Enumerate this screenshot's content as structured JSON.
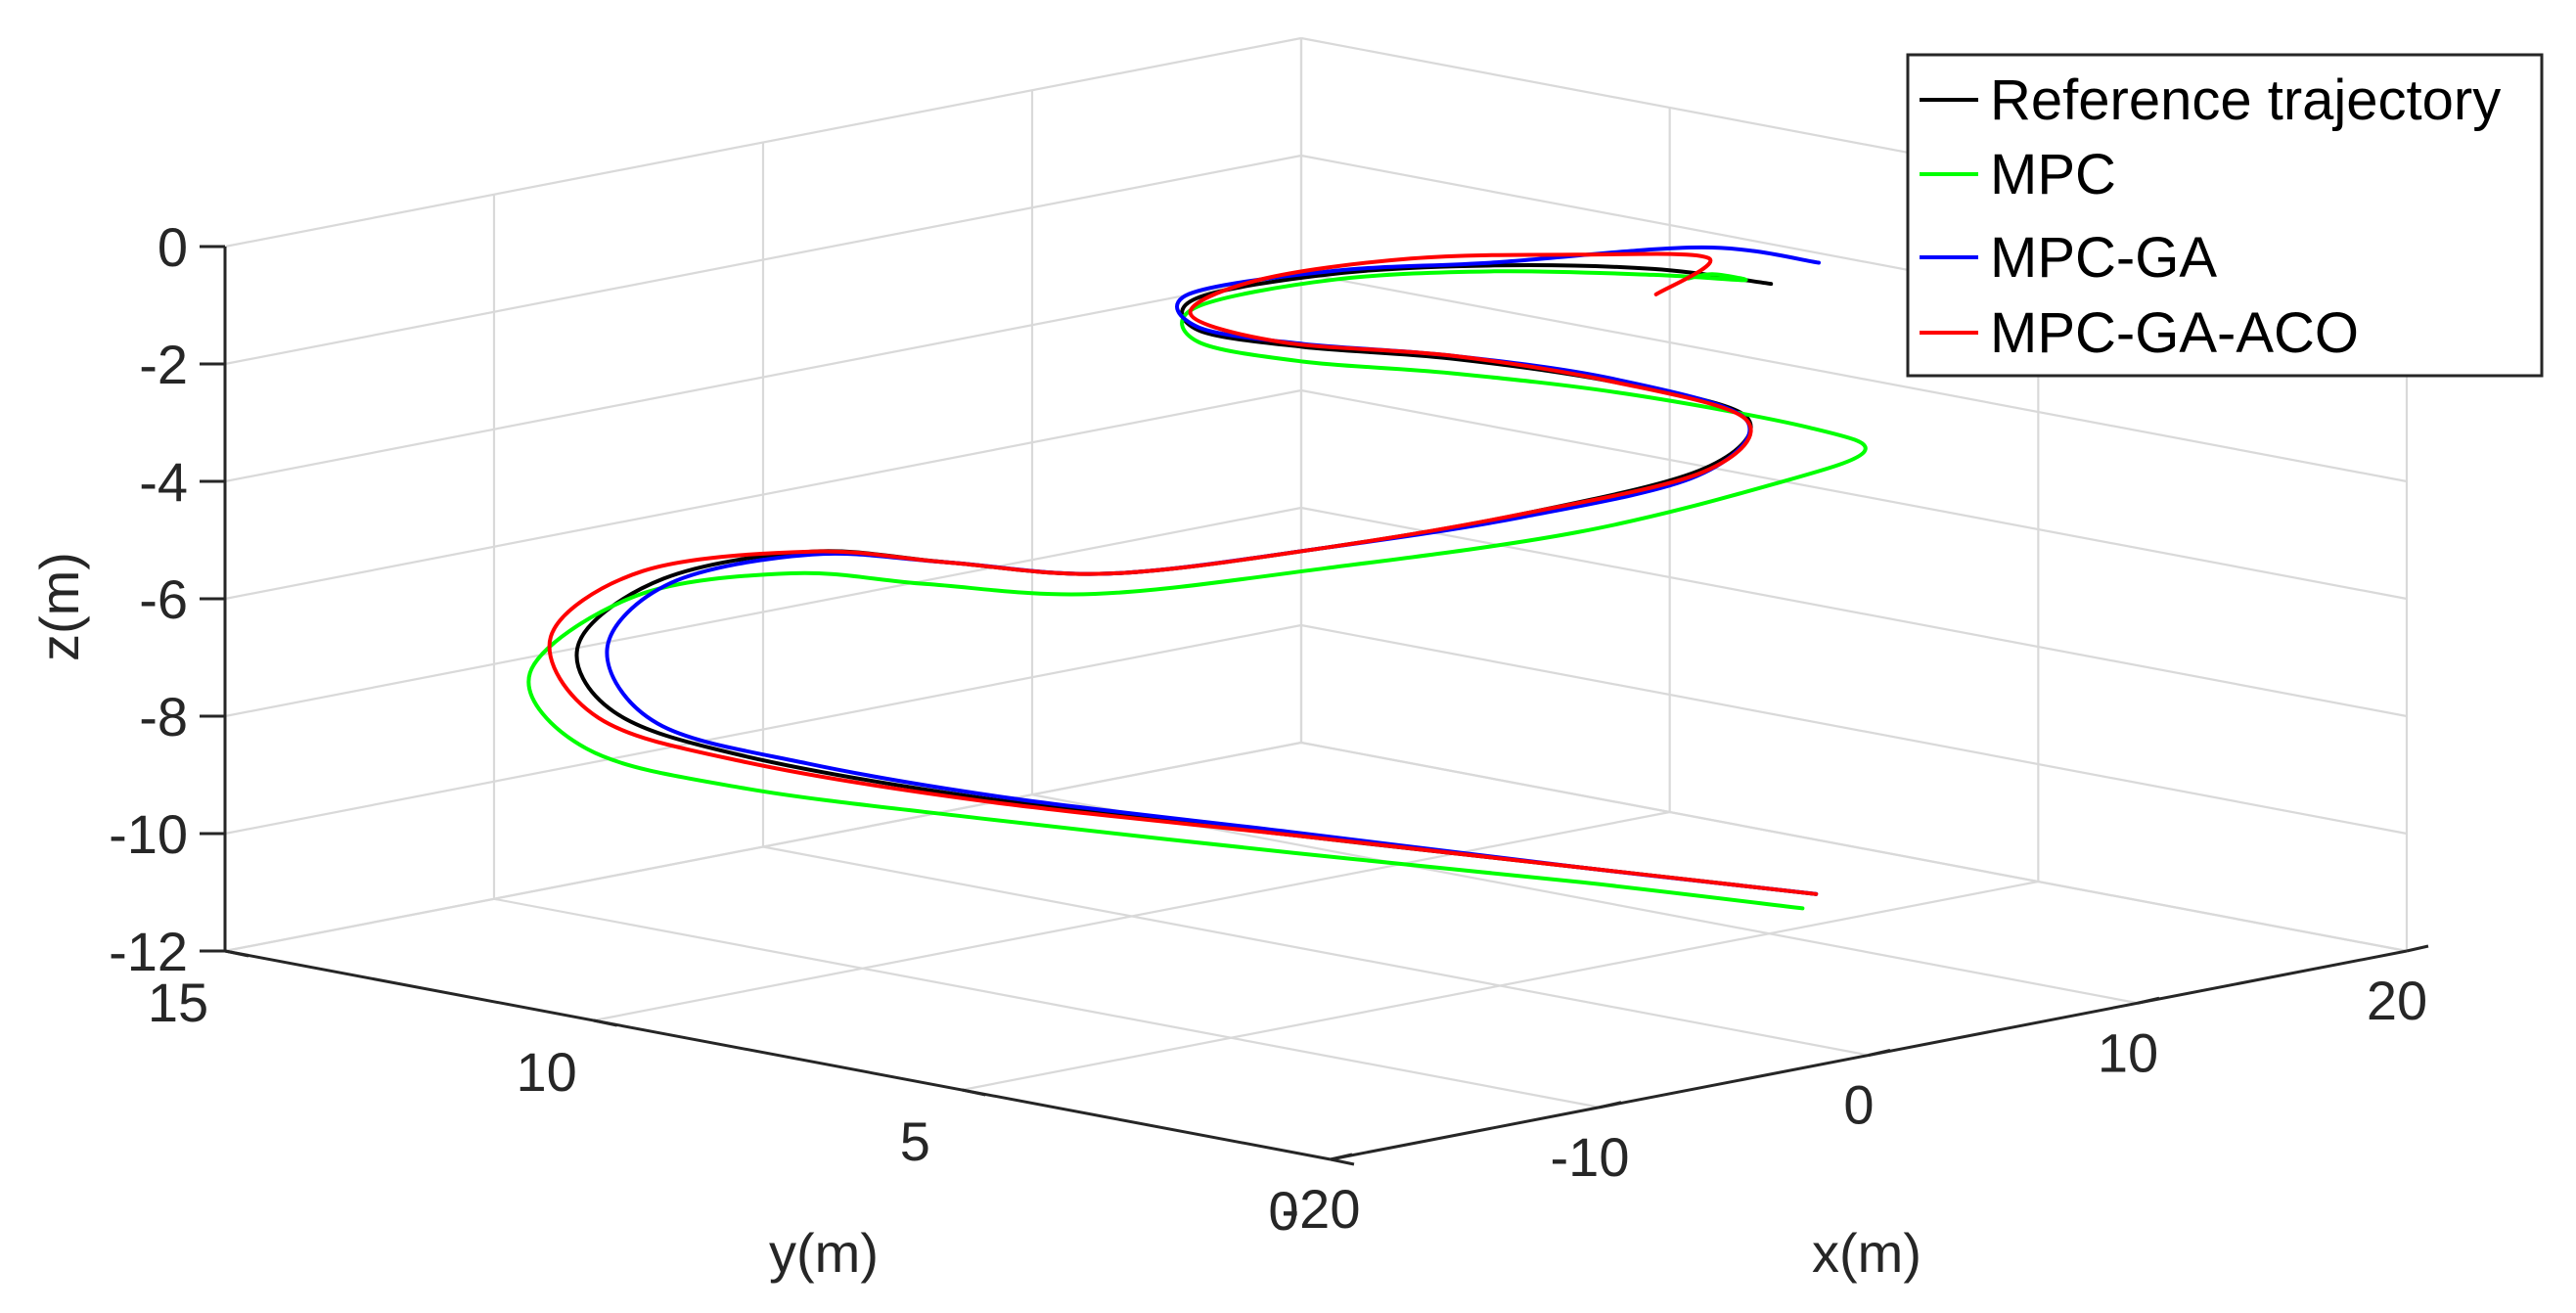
{
  "chart_data": {
    "type": "line",
    "title": "",
    "xlabel": "x(m)",
    "ylabel": "y(m)",
    "zlabel": "z(m)",
    "xlim": [
      -20,
      20
    ],
    "ylim": [
      0,
      15
    ],
    "zlim": [
      -12,
      0
    ],
    "xticks": [
      "-20",
      "-10",
      "0",
      "10",
      "20"
    ],
    "yticks": [
      "0",
      "5",
      "10",
      "15"
    ],
    "zticks": [
      "-12",
      "-10",
      "-8",
      "-6",
      "-4",
      "-2",
      "0"
    ],
    "grid": true,
    "legend_position": "top-right",
    "colors": {
      "Reference trajectory": "#000000",
      "MPC": "#00ff00",
      "MPC-GA": "#0000ff",
      "MPC-GA-ACO": "#ff0000"
    },
    "series": [
      {
        "name": "Reference trajectory",
        "color": "#000000",
        "points": [
          [
            15.0,
            6.8,
            -1.8
          ],
          [
            12.0,
            7.3,
            -1.4
          ],
          [
            8.0,
            8.0,
            -1.15
          ],
          [
            4.0,
            8.7,
            -1.1
          ],
          [
            0.5,
            9.3,
            -1.35
          ],
          [
            0.0,
            9.1,
            -1.8
          ],
          [
            2.0,
            8.4,
            -2.1
          ],
          [
            5.0,
            7.5,
            -2.35
          ],
          [
            8.0,
            6.4,
            -2.75
          ],
          [
            10.5,
            5.5,
            -3.35
          ],
          [
            9.5,
            5.7,
            -4.2
          ],
          [
            6.0,
            6.8,
            -4.9
          ],
          [
            2.0,
            8.1,
            -5.45
          ],
          [
            -2.5,
            9.4,
            -5.8
          ],
          [
            -5.5,
            10.5,
            -5.6
          ],
          [
            -7.5,
            11.6,
            -5.5
          ],
          [
            -10.0,
            12.7,
            -6.0
          ],
          [
            -11.5,
            13.3,
            -7.1
          ],
          [
            -11.3,
            12.9,
            -8.2
          ],
          [
            -9.5,
            11.8,
            -8.85
          ],
          [
            -5.5,
            10.0,
            -9.5
          ],
          [
            0.0,
            7.8,
            -10.1
          ],
          [
            5.0,
            5.7,
            -10.6
          ],
          [
            9.0,
            4.0,
            -11.0
          ]
        ]
      },
      {
        "name": "MPC",
        "color": "#00ff00",
        "points": [
          [
            10.0,
            6.1,
            -1.1
          ],
          [
            12.0,
            6.5,
            -1.3
          ],
          [
            14.0,
            6.8,
            -1.65
          ],
          [
            12.0,
            7.3,
            -1.5
          ],
          [
            8.0,
            8.0,
            -1.25
          ],
          [
            4.0,
            8.7,
            -1.2
          ],
          [
            0.5,
            9.3,
            -1.5
          ],
          [
            0.0,
            9.1,
            -2.0
          ],
          [
            2.0,
            8.4,
            -2.35
          ],
          [
            5.0,
            7.5,
            -2.6
          ],
          [
            8.5,
            6.4,
            -3.0
          ],
          [
            12.0,
            5.2,
            -3.6
          ],
          [
            13.0,
            4.8,
            -4.0
          ],
          [
            11.0,
            5.3,
            -4.5
          ],
          [
            7.0,
            6.5,
            -5.25
          ],
          [
            2.0,
            8.1,
            -5.8
          ],
          [
            -3.0,
            9.4,
            -6.1
          ],
          [
            -6.0,
            10.6,
            -5.95
          ],
          [
            -8.0,
            11.7,
            -5.85
          ],
          [
            -10.5,
            12.9,
            -6.3
          ],
          [
            -12.5,
            13.6,
            -7.6
          ],
          [
            -12.0,
            13.0,
            -8.8
          ],
          [
            -9.5,
            11.8,
            -9.4
          ],
          [
            -5.5,
            10.0,
            -9.85
          ],
          [
            0.0,
            7.8,
            -10.4
          ],
          [
            5.0,
            5.7,
            -10.85
          ],
          [
            8.5,
            4.0,
            -11.2
          ]
        ]
      },
      {
        "name": "MPC-GA",
        "color": "#0000ff",
        "points": [
          [
            16.5,
            6.7,
            -1.55
          ],
          [
            13.0,
            7.0,
            -1.05
          ],
          [
            8.0,
            8.0,
            -1.1
          ],
          [
            4.0,
            8.7,
            -1.05
          ],
          [
            0.5,
            9.4,
            -1.3
          ],
          [
            0.0,
            9.1,
            -1.75
          ],
          [
            2.0,
            8.4,
            -2.05
          ],
          [
            5.0,
            7.5,
            -2.3
          ],
          [
            8.0,
            6.4,
            -2.7
          ],
          [
            10.5,
            5.5,
            -3.4
          ],
          [
            9.5,
            5.8,
            -4.35
          ],
          [
            6.0,
            6.9,
            -5.0
          ],
          [
            2.0,
            8.1,
            -5.45
          ],
          [
            -2.5,
            9.4,
            -5.8
          ],
          [
            -5.5,
            10.5,
            -5.6
          ],
          [
            -7.5,
            11.6,
            -5.55
          ],
          [
            -10.0,
            12.6,
            -6.05
          ],
          [
            -11.0,
            13.1,
            -7.2
          ],
          [
            -10.5,
            12.6,
            -8.4
          ],
          [
            -8.5,
            11.3,
            -8.95
          ],
          [
            -5.0,
            9.8,
            -9.5
          ],
          [
            0.0,
            7.8,
            -10.05
          ],
          [
            5.0,
            5.7,
            -10.6
          ],
          [
            9.0,
            4.0,
            -11.0
          ]
        ]
      },
      {
        "name": "MPC-GA-ACO",
        "color": "#ff0000",
        "points": [
          [
            11.0,
            6.9,
            -1.65
          ],
          [
            13.5,
            7.1,
            -1.3
          ],
          [
            10.0,
            7.6,
            -1.05
          ],
          [
            6.0,
            8.4,
            -0.95
          ],
          [
            2.0,
            9.0,
            -1.1
          ],
          [
            0.0,
            9.2,
            -1.55
          ],
          [
            1.5,
            8.5,
            -2.0
          ],
          [
            5.0,
            7.5,
            -2.3
          ],
          [
            8.0,
            6.4,
            -2.75
          ],
          [
            10.5,
            5.5,
            -3.4
          ],
          [
            9.5,
            5.7,
            -4.25
          ],
          [
            6.0,
            6.8,
            -4.9
          ],
          [
            2.0,
            8.1,
            -5.45
          ],
          [
            -2.5,
            9.4,
            -5.8
          ],
          [
            -5.5,
            10.5,
            -5.6
          ],
          [
            -7.5,
            11.6,
            -5.5
          ],
          [
            -10.5,
            12.8,
            -5.85
          ],
          [
            -12.0,
            13.5,
            -7.0
          ],
          [
            -11.6,
            13.0,
            -8.3
          ],
          [
            -9.5,
            11.8,
            -8.95
          ],
          [
            -5.5,
            10.0,
            -9.55
          ],
          [
            0.0,
            7.8,
            -10.1
          ],
          [
            5.0,
            5.7,
            -10.6
          ],
          [
            9.0,
            4.0,
            -11.0
          ]
        ]
      }
    ]
  }
}
